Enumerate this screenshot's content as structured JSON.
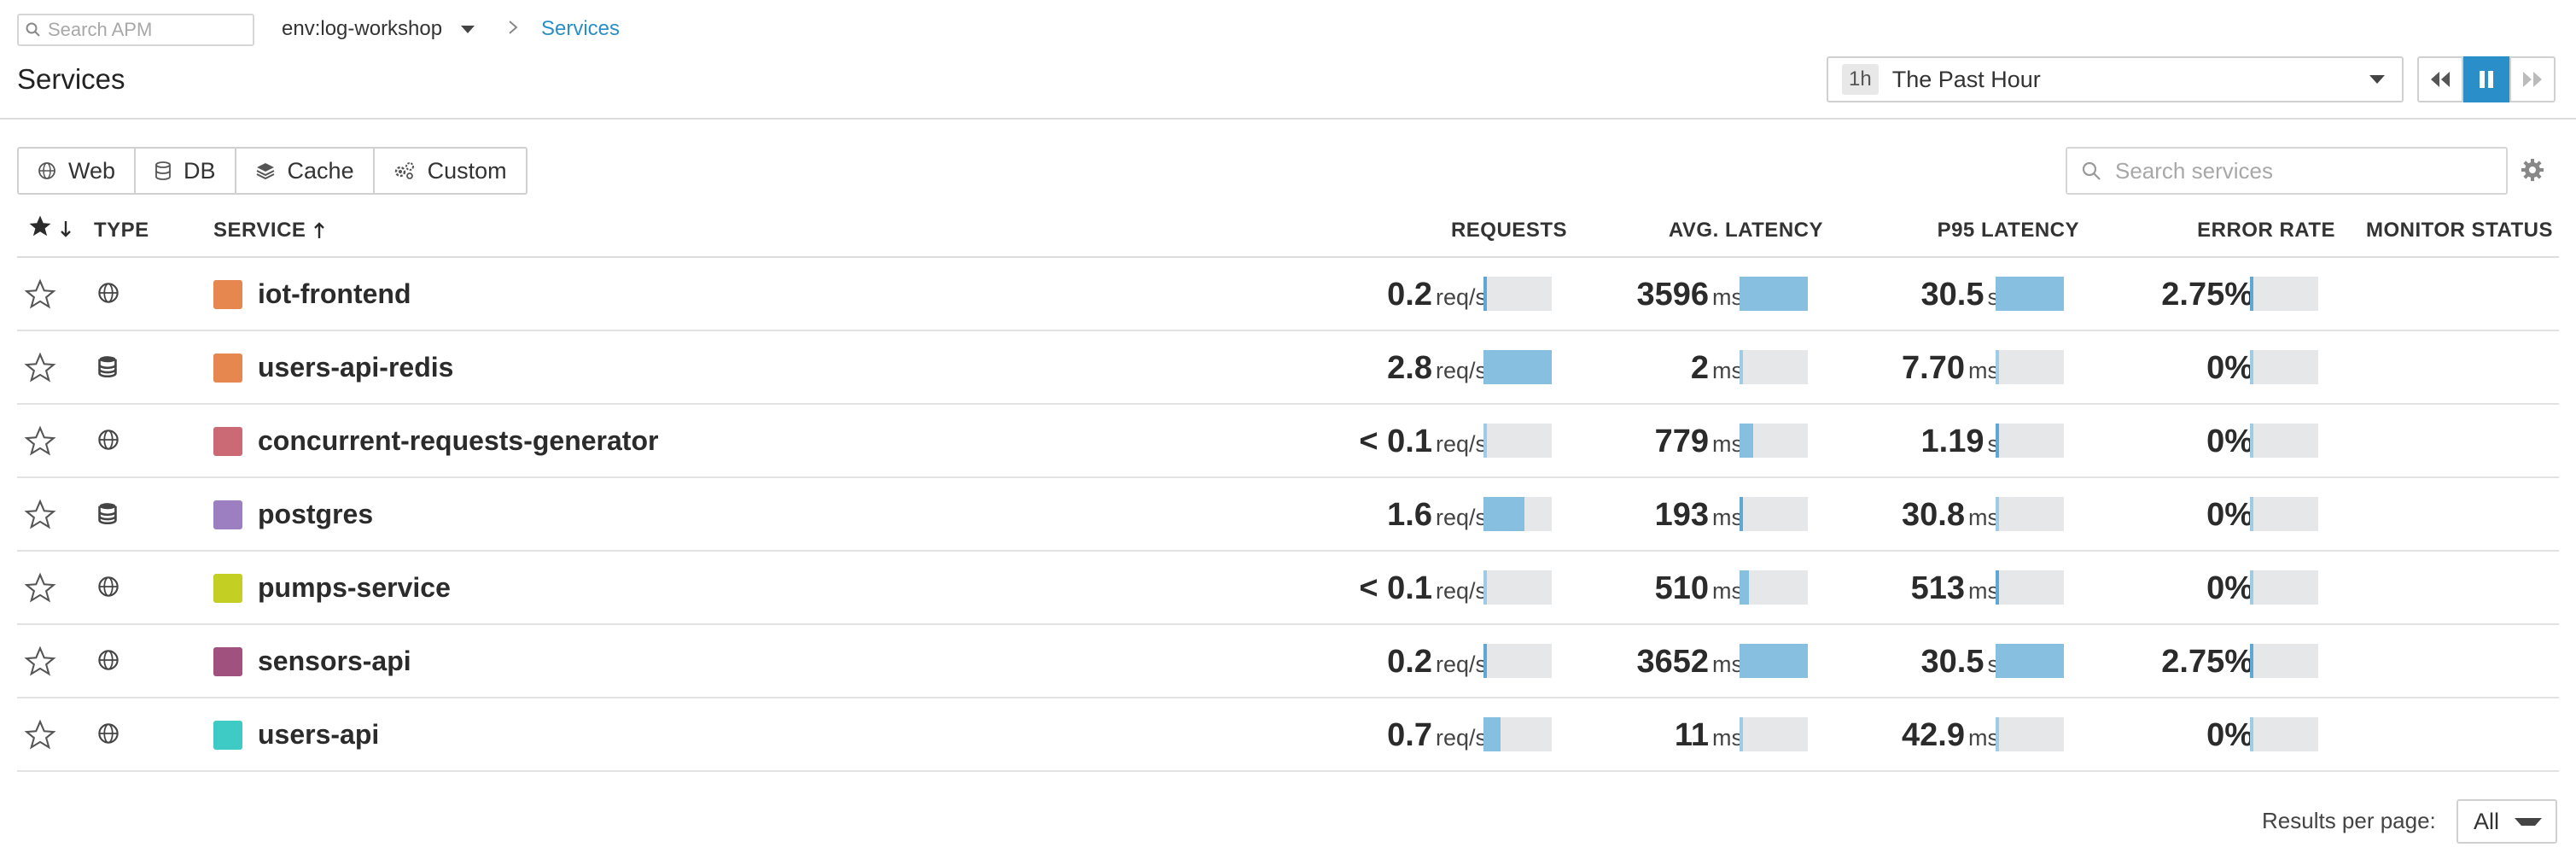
{
  "topbar": {
    "search_placeholder": "Search APM",
    "env": "env:log-workshop",
    "breadcrumb": "Services"
  },
  "page_title": "Services",
  "timepicker": {
    "badge": "1h",
    "label": "The Past Hour"
  },
  "filters": [
    {
      "label": "Web",
      "icon": "globe-icon"
    },
    {
      "label": "DB",
      "icon": "database-icon"
    },
    {
      "label": "Cache",
      "icon": "layers-icon"
    },
    {
      "label": "Custom",
      "icon": "gears-icon"
    }
  ],
  "service_search_placeholder": "Search services",
  "columns": {
    "type": "TYPE",
    "service": "SERVICE",
    "requests": "REQUESTS",
    "avg_latency": "AVG. LATENCY",
    "p95_latency": "P95 LATENCY",
    "error_rate": "ERROR RATE",
    "monitor_status": "MONITOR STATUS"
  },
  "colors": {
    "accent": "#2a8ec8",
    "bar_fill": "#86bfdf",
    "bar_track": "#e6e7e9"
  },
  "services": [
    {
      "name": "iot-frontend",
      "type": "web",
      "color": "#e6874f",
      "requests": "0.2",
      "requests_unit": "req/s",
      "requests_level": 0.05,
      "avg_latency": "3596",
      "avg_latency_unit": "ms",
      "avg_latency_level": 1.0,
      "p95_latency": "30.5",
      "p95_latency_unit": "s",
      "p95_latency_level": 1.0,
      "error_rate": "2.75%",
      "error_level": 0.05
    },
    {
      "name": "users-api-redis",
      "type": "db",
      "color": "#e6874f",
      "requests": "2.8",
      "requests_unit": "req/s",
      "requests_level": 1.0,
      "avg_latency": "2",
      "avg_latency_unit": "ms",
      "avg_latency_level": 0.0,
      "p95_latency": "7.70",
      "p95_latency_unit": "ms",
      "p95_latency_level": 0.0,
      "error_rate": "0%",
      "error_level": 0.0
    },
    {
      "name": "concurrent-requests-generator",
      "type": "web",
      "color": "#cb6a74",
      "requests": "< 0.1",
      "requests_unit": "req/s",
      "requests_level": 0.0,
      "avg_latency": "779",
      "avg_latency_unit": "ms",
      "avg_latency_level": 0.2,
      "p95_latency": "1.19",
      "p95_latency_unit": "s",
      "p95_latency_level": 0.04,
      "error_rate": "0%",
      "error_level": 0.0
    },
    {
      "name": "postgres",
      "type": "db",
      "color": "#9c7fc0",
      "requests": "1.6",
      "requests_unit": "req/s",
      "requests_level": 0.6,
      "avg_latency": "193",
      "avg_latency_unit": "ms",
      "avg_latency_level": 0.05,
      "p95_latency": "30.8",
      "p95_latency_unit": "ms",
      "p95_latency_level": 0.0,
      "error_rate": "0%",
      "error_level": 0.0
    },
    {
      "name": "pumps-service",
      "type": "web",
      "color": "#c3d023",
      "requests": "< 0.1",
      "requests_unit": "req/s",
      "requests_level": 0.0,
      "avg_latency": "510",
      "avg_latency_unit": "ms",
      "avg_latency_level": 0.14,
      "p95_latency": "513",
      "p95_latency_unit": "ms",
      "p95_latency_level": 0.02,
      "error_rate": "0%",
      "error_level": 0.0
    },
    {
      "name": "sensors-api",
      "type": "web",
      "color": "#a0517d",
      "requests": "0.2",
      "requests_unit": "req/s",
      "requests_level": 0.05,
      "avg_latency": "3652",
      "avg_latency_unit": "ms",
      "avg_latency_level": 1.0,
      "p95_latency": "30.5",
      "p95_latency_unit": "s",
      "p95_latency_level": 1.0,
      "error_rate": "2.75%",
      "error_level": 0.05
    },
    {
      "name": "users-api",
      "type": "web",
      "color": "#3ecbc6",
      "requests": "0.7",
      "requests_unit": "req/s",
      "requests_level": 0.25,
      "avg_latency": "11",
      "avg_latency_unit": "ms",
      "avg_latency_level": 0.0,
      "p95_latency": "42.9",
      "p95_latency_unit": "ms",
      "p95_latency_level": 0.0,
      "error_rate": "0%",
      "error_level": 0.0
    }
  ],
  "pagination": {
    "label": "Results per page:",
    "value": "All"
  }
}
